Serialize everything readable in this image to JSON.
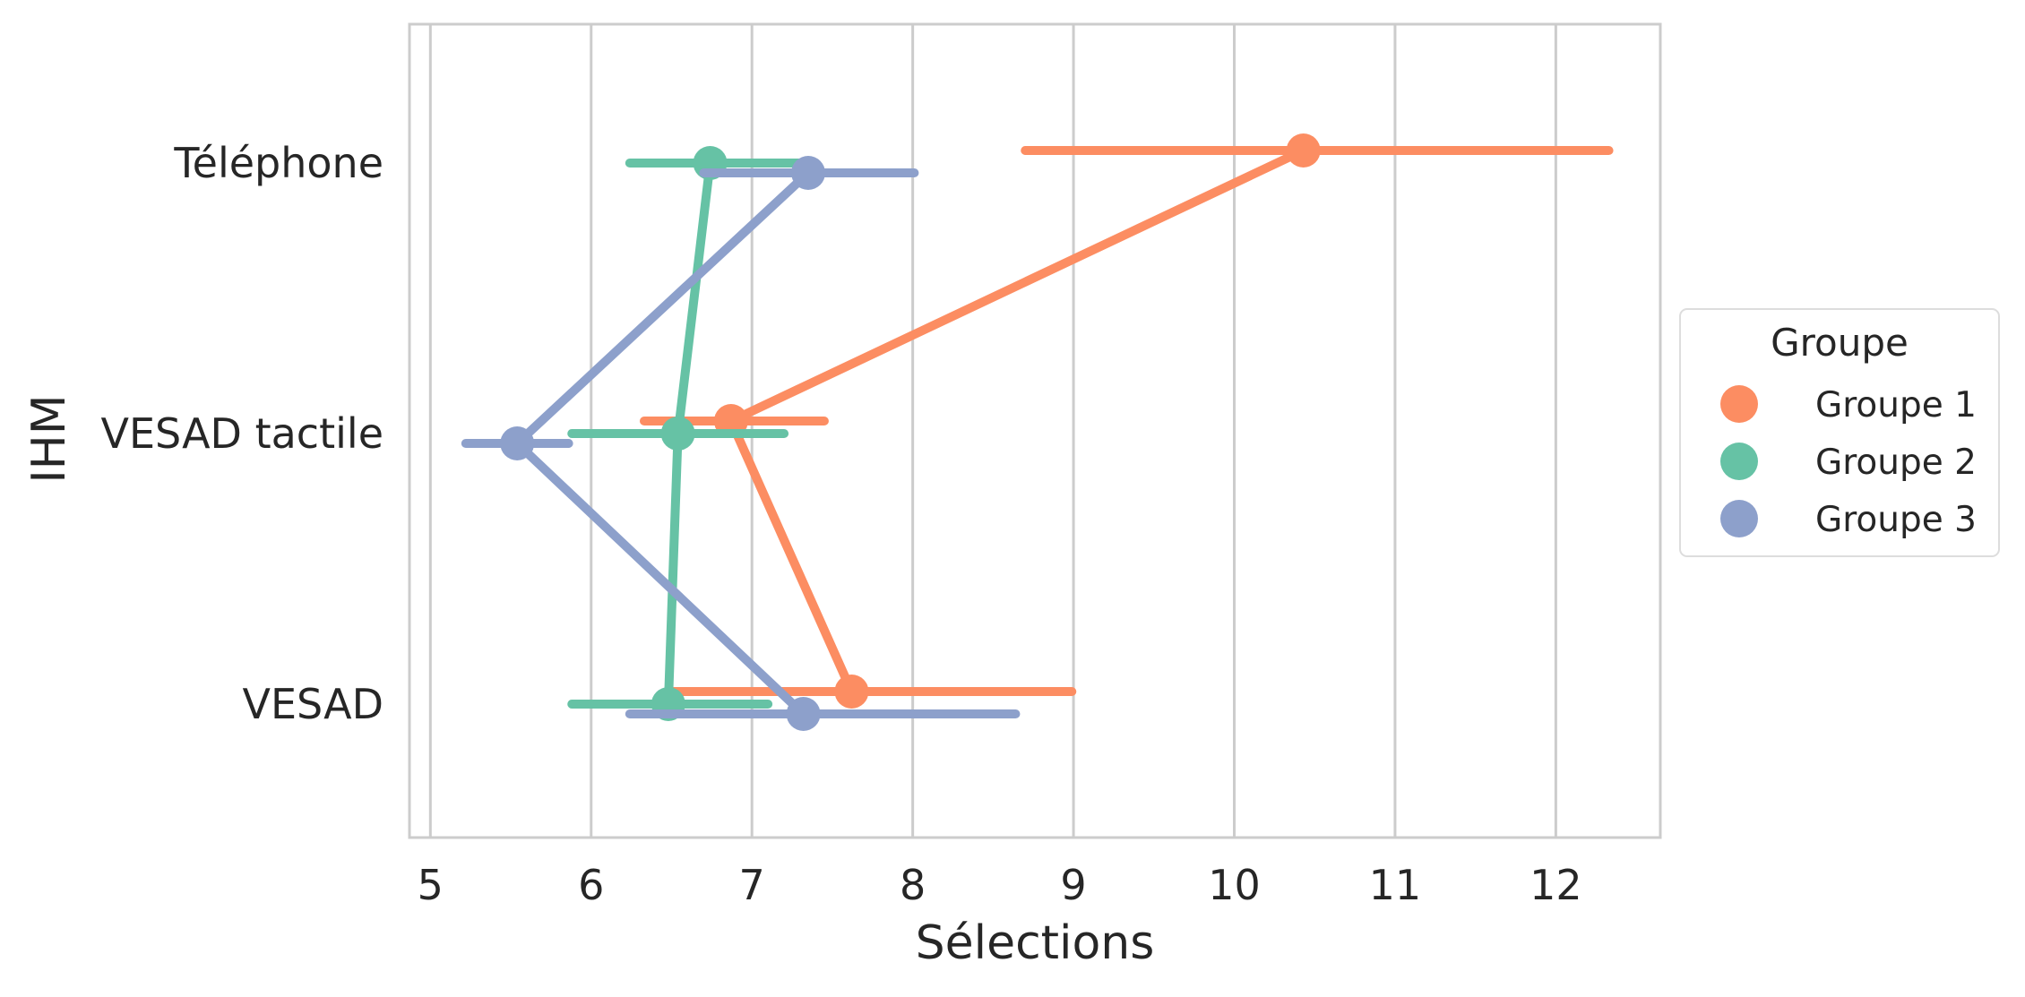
{
  "chart_data": {
    "type": "pointplot",
    "orientation": "horizontal",
    "xlabel": "Sélections",
    "ylabel": "IHM",
    "categories": [
      "Téléphone",
      "VESAD tactile",
      "VESAD"
    ],
    "xlim": [
      4.87,
      12.65
    ],
    "xticks": [
      "5",
      "6",
      "7",
      "8",
      "9",
      "10",
      "11",
      "12"
    ],
    "grid": "x",
    "legend": {
      "title": "Groupe",
      "position": "right"
    },
    "series": [
      {
        "name": "Groupe 1",
        "color": "#fc8d62",
        "values": [
          10.43,
          6.87,
          7.62
        ],
        "ci": [
          [
            8.7,
            12.33
          ],
          [
            6.33,
            7.45
          ],
          [
            6.5,
            8.99
          ]
        ]
      },
      {
        "name": "Groupe 2",
        "color": "#66c2a5",
        "values": [
          6.74,
          6.54,
          6.48
        ],
        "ci": [
          [
            6.24,
            7.3
          ],
          [
            5.88,
            7.2
          ],
          [
            5.88,
            7.1
          ]
        ]
      },
      {
        "name": "Groupe 3",
        "color": "#8da0cb",
        "values": [
          7.35,
          5.54,
          7.32
        ],
        "ci": [
          [
            6.7,
            8.01
          ],
          [
            5.22,
            5.86
          ],
          [
            6.24,
            8.64
          ]
        ]
      }
    ]
  }
}
